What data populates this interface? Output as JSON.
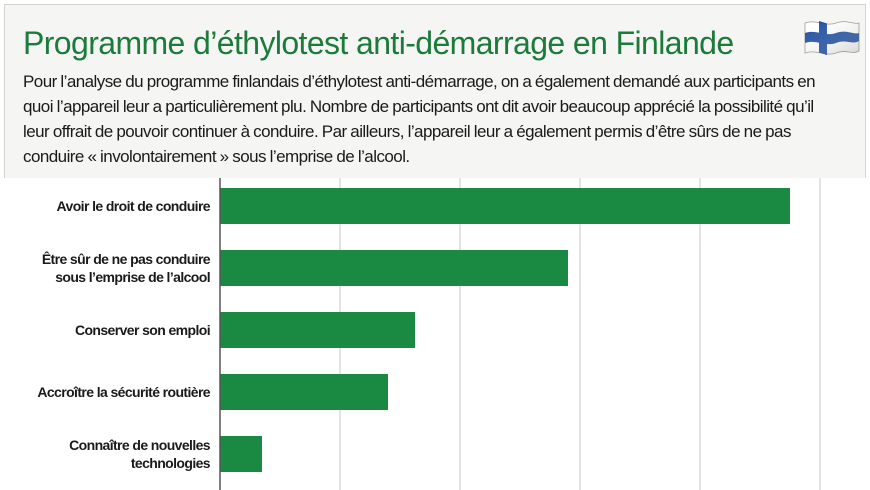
{
  "title": "Programme d’éthylotest anti-démarrage en Finlande",
  "description_lines": [
    "Pour l’analyse du programme finlandais d’éthylotest anti-démarrage, on a également demandé aux participants en",
    "quoi l’appareil leur a particulièrement plu. Nombre de participants ont dit avoir beaucoup apprécié la possibilité qu’il",
    "leur offrait de pouvoir continuer à conduire. Par ailleurs, l’appareil leur a également permis d’être sûrs de ne pas",
    "conduire « involontairement » sous l’emprise de l’alcool."
  ],
  "flag": {
    "icon": "finland-flag-icon",
    "colors": {
      "cross": "#1f4fa3",
      "field": "#ffffff"
    }
  },
  "colors": {
    "title": "#1c7a3a",
    "bar": "#1a8a43",
    "grid": "#c8c8c8",
    "axis": "#555555"
  },
  "chart_data": {
    "type": "bar",
    "orientation": "horizontal",
    "categories": [
      [
        "Avoir le droit de conduire"
      ],
      [
        "Être sûr de ne pas conduire",
        "sous l’emprise de l’alcool"
      ],
      [
        "Conserver son emploi"
      ],
      [
        "Accroître la sécurité routière"
      ],
      [
        "Connaître de nouvelles",
        "technologies"
      ]
    ],
    "values": [
      95,
      58,
      32.5,
      28,
      7
    ],
    "xlim": [
      0,
      100
    ],
    "grid": true,
    "gridlines": [
      0,
      20,
      40,
      60,
      80,
      100
    ],
    "xlabel": "",
    "ylabel": ""
  }
}
